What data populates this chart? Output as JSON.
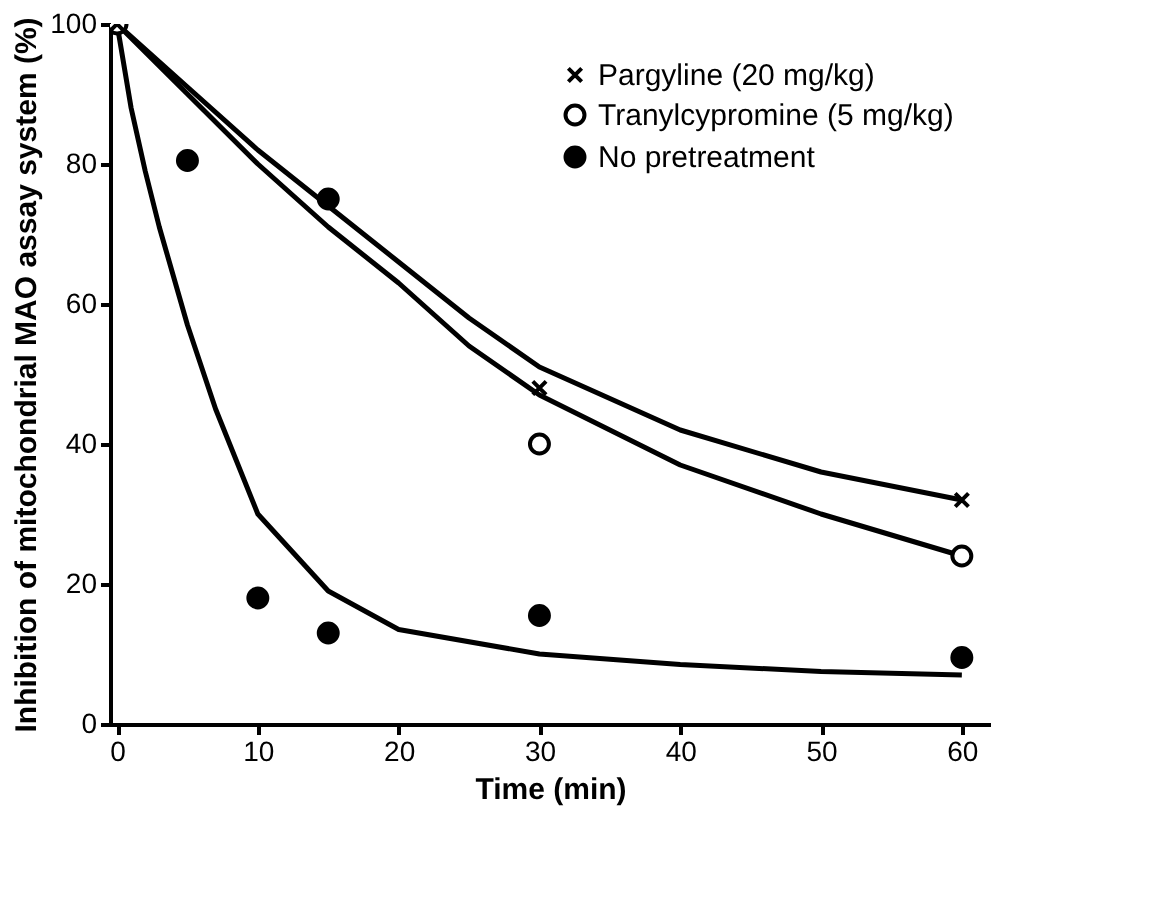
{
  "chart_data": {
    "type": "scatter",
    "xlabel": "Time (min)",
    "ylabel": "Inhibition of mitochondrial MAO assay system (%)",
    "xlim": [
      -0.5,
      62
    ],
    "ylim": [
      0,
      100
    ],
    "xticks": [
      0,
      10,
      20,
      30,
      40,
      50,
      60
    ],
    "yticks": [
      0,
      20,
      40,
      60,
      80,
      100
    ],
    "grid": false,
    "legend": "top right",
    "series": [
      {
        "name": "Pargyline (20 mg/kg)",
        "marker": "cross",
        "color": "#000000",
        "x": [
          0,
          30,
          60
        ],
        "values": [
          100,
          48,
          32
        ]
      },
      {
        "name": "Tranylcypromine (5 mg/kg)",
        "marker": "circle",
        "color": "#ffffff",
        "x": [
          0,
          30,
          60
        ],
        "values": [
          100,
          40,
          24
        ]
      },
      {
        "name": "No pretreatment",
        "marker": "circle",
        "color": "#000000",
        "x": [
          5,
          10,
          15,
          15,
          30,
          60
        ],
        "values": [
          80.5,
          18,
          75,
          13,
          15.5,
          9.5
        ]
      },
      {
        "type": "line",
        "line_style": "solid",
        "color": "#000000",
        "x": [
          0,
          5,
          10,
          15,
          20,
          25,
          30,
          40,
          50,
          60
        ],
        "values": [
          100,
          91,
          82,
          74,
          66,
          58,
          51,
          42,
          36,
          32
        ]
      },
      {
        "type": "line",
        "line_style": "solid",
        "color": "#000000",
        "x": [
          0,
          5,
          10,
          15,
          20,
          25,
          30,
          40,
          50,
          60
        ],
        "values": [
          100,
          90,
          80,
          71,
          63,
          54,
          47,
          37,
          30,
          24
        ]
      },
      {
        "type": "line",
        "line_style": "solid",
        "color": "#000000",
        "x": [
          0,
          1,
          2,
          3,
          5,
          7,
          10,
          15,
          20,
          30,
          40,
          50,
          60
        ],
        "values": [
          100,
          88,
          79,
          71,
          57,
          45,
          30,
          19,
          13.5,
          10,
          8.5,
          7.5,
          7
        ]
      }
    ]
  }
}
